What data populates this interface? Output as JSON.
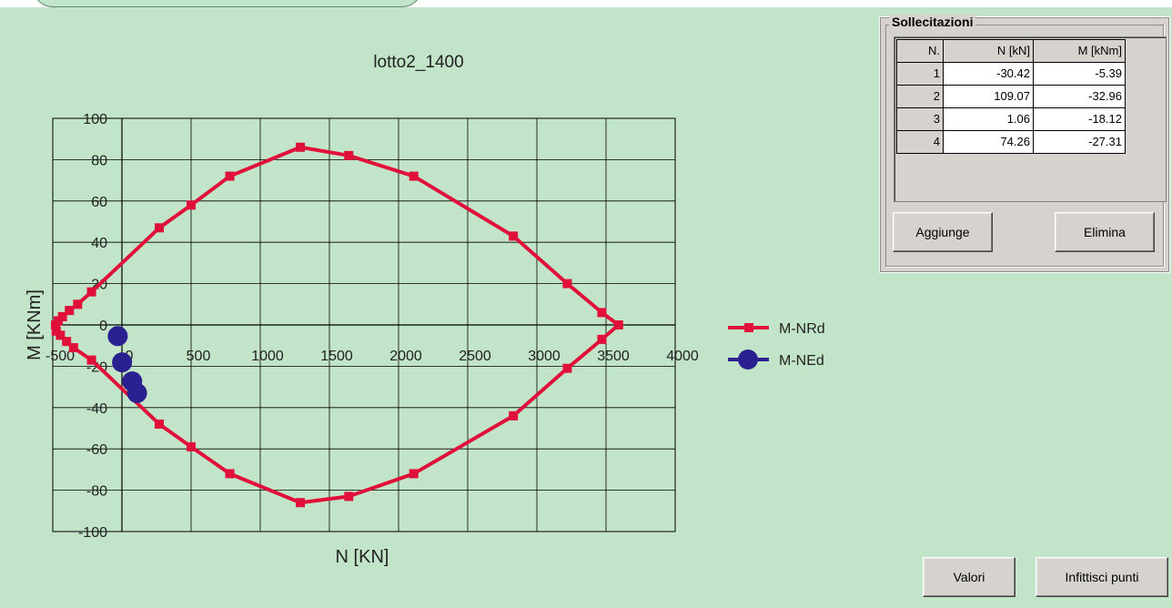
{
  "chart_data": {
    "type": "line",
    "title": "lotto2_1400",
    "xlabel": "N [KN]",
    "ylabel": "M [KNm]",
    "xlim": [
      -500,
      4000
    ],
    "ylim": [
      -100,
      100
    ],
    "xticks": [
      "-500",
      "0",
      "500",
      "1000",
      "1500",
      "2000",
      "2500",
      "3000",
      "3500",
      "4000"
    ],
    "yticks": [
      "100",
      "80",
      "60",
      "40",
      "20",
      "0",
      "-20",
      "-40",
      "-60",
      "-80",
      "-100"
    ],
    "grid": true,
    "legend_position": "right",
    "series": [
      {
        "name": "M-NRd",
        "color": "#e0103a",
        "marker": "square",
        "x": [
          3590,
          3470,
          3220,
          2830,
          2110,
          1640,
          1290,
          780,
          500,
          270,
          -220,
          -320,
          -380,
          -430,
          -460,
          -480,
          -475,
          -445,
          -400,
          -350,
          -220,
          270,
          500,
          780,
          1290,
          1640,
          2110,
          2830,
          3220,
          3470,
          3590
        ],
        "y": [
          0,
          6,
          20,
          43,
          72,
          82,
          86,
          72,
          58,
          47,
          16,
          10,
          7,
          4,
          2,
          0,
          -3,
          -5,
          -8,
          -11,
          -17,
          -48,
          -59,
          -72,
          -86,
          -83,
          -72,
          -44,
          -21,
          -7,
          0
        ]
      },
      {
        "name": "M-NEd",
        "color": "#2b2090",
        "marker": "circle",
        "x": [
          -30.42,
          109.07,
          1.06,
          74.26
        ],
        "y": [
          -5.39,
          -32.96,
          -18.12,
          -27.31
        ]
      }
    ]
  },
  "panel": {
    "title": "Sollecitazioni",
    "columns": [
      "N.",
      "N [kN]",
      "M [kNm]"
    ],
    "rows": [
      [
        "1",
        "-30.42",
        "-5.39"
      ],
      [
        "2",
        "109.07",
        "-32.96"
      ],
      [
        "3",
        "1.06",
        "-18.12"
      ],
      [
        "4",
        "74.26",
        "-27.31"
      ]
    ],
    "add_label": "Aggiunge",
    "delete_label": "Elimina"
  },
  "buttons": {
    "values_label": "Valori",
    "densify_label": "Infittisci punti"
  }
}
